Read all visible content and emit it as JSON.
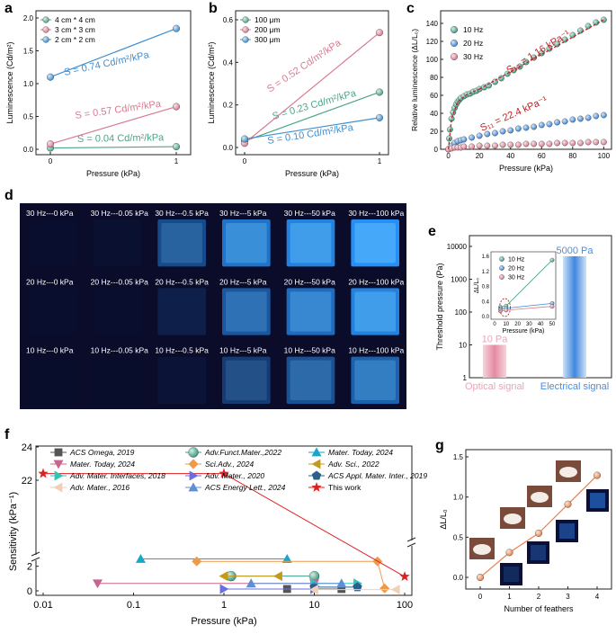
{
  "panels": {
    "a": "a",
    "b": "b",
    "c": "c",
    "d": "d",
    "e": "e",
    "f": "f",
    "g": "g"
  },
  "chart_data": [
    {
      "id": "a",
      "type": "line",
      "xlabel": "Pressure (kPa)",
      "ylabel": "Luminescence (Cd/m²)",
      "x": [
        0,
        1
      ],
      "ylim": [
        0,
        2.0
      ],
      "yticks": [
        "0.0",
        "0.5",
        "1.0",
        "1.5",
        "2.0"
      ],
      "xticks": [
        "0",
        "1"
      ],
      "series": [
        {
          "name": "4 cm * 4 cm",
          "color": "#4aa58a",
          "values": [
            0.02,
            0.04
          ],
          "annotation": "S = 0.04 Cd/m²/kPa"
        },
        {
          "name": "3 cm * 3 cm",
          "color": "#d97a8f",
          "values": [
            0.08,
            0.65
          ],
          "annotation": "S = 0.57 Cd/m²/kPa"
        },
        {
          "name": "2 cm * 2 cm",
          "color": "#3f8fd1",
          "values": [
            1.1,
            1.84
          ],
          "annotation": "S = 0.74 Cd/m²/kPa"
        }
      ]
    },
    {
      "id": "b",
      "type": "line",
      "xlabel": "Pressure (kPa)",
      "ylabel": "Luminescence (Cd/m²)",
      "x": [
        0,
        1
      ],
      "ylim": [
        0,
        0.6
      ],
      "yticks": [
        "0.0",
        "0.2",
        "0.4",
        "0.6"
      ],
      "xticks": [
        "0",
        "1"
      ],
      "series": [
        {
          "name": "100 μm",
          "color": "#4aa58a",
          "values": [
            0.03,
            0.26
          ],
          "annotation": "S = 0.23 Cd/m²/kPa"
        },
        {
          "name": "200 μm",
          "color": "#d97a8f",
          "values": [
            0.02,
            0.54
          ],
          "annotation": "S = 0.52 Cd/m²/kPa"
        },
        {
          "name": "300 μm",
          "color": "#3f8fd1",
          "values": [
            0.04,
            0.14
          ],
          "annotation": "S = 0.10 Cd/m²/kPa"
        }
      ]
    },
    {
      "id": "c",
      "type": "scatter",
      "xlabel": "Pressure (kPa)",
      "ylabel": "Relative luminescence (ΔL/L₀)",
      "xlim": [
        -5,
        105
      ],
      "ylim": [
        0,
        150
      ],
      "xticks": [
        "0",
        "20",
        "40",
        "60",
        "80",
        "100"
      ],
      "yticks": [
        "0",
        "20",
        "40",
        "60",
        "80",
        "100",
        "120",
        "140"
      ],
      "annotations": [
        "S₁₂ = 1.16 kPa⁻¹",
        "S₁₁ = 22.4 kPa⁻¹"
      ],
      "series": [
        {
          "name": "10 Hz",
          "color": "#3a9e82",
          "x": [
            0,
            0.5,
            1,
            2,
            3,
            4,
            5,
            6,
            7,
            8,
            10,
            12,
            14,
            16,
            18,
            20,
            23,
            26,
            30,
            34,
            38,
            42,
            46,
            50,
            55,
            60,
            65,
            70,
            75,
            80,
            85,
            90,
            95,
            100
          ],
          "values": [
            0,
            12,
            22,
            34,
            41,
            46,
            50,
            53,
            55,
            57,
            59,
            61,
            62,
            64,
            65,
            67,
            69,
            71,
            75,
            79,
            84,
            88,
            92,
            97,
            102,
            107,
            112,
            117,
            122,
            127,
            132,
            137,
            141,
            144
          ]
        },
        {
          "name": "20 Hz",
          "color": "#3d86d6",
          "x": [
            0,
            2,
            4,
            6,
            8,
            10,
            15,
            20,
            25,
            30,
            35,
            40,
            45,
            50,
            55,
            60,
            65,
            70,
            75,
            80,
            85,
            90,
            95,
            100
          ],
          "values": [
            0,
            4,
            7,
            9,
            10,
            11,
            13,
            15,
            17,
            18,
            20,
            21,
            23,
            24,
            25,
            27,
            28,
            30,
            31,
            33,
            34,
            35,
            37,
            38
          ]
        },
        {
          "name": "30 Hz",
          "color": "#d97a8f",
          "x": [
            0,
            2,
            4,
            6,
            8,
            10,
            15,
            20,
            25,
            30,
            35,
            40,
            45,
            50,
            55,
            60,
            65,
            70,
            75,
            80,
            85,
            90,
            95,
            100
          ],
          "values": [
            0,
            1,
            2,
            2,
            2,
            3,
            3,
            4,
            4,
            4,
            5,
            5,
            5,
            6,
            6,
            6,
            6,
            7,
            7,
            7,
            7,
            8,
            8,
            8
          ]
        }
      ]
    },
    {
      "id": "e",
      "type": "bar",
      "ylabel": "Threshold pressure (Pa)",
      "yscale": "log",
      "ylim": [
        1,
        10000
      ],
      "yticks": [
        "1",
        "10",
        "100",
        "1000",
        "10000"
      ],
      "categories": [
        "Optical signal",
        "Electrical signal"
      ],
      "values": [
        10,
        5000
      ],
      "value_labels": [
        "10 Pa",
        "5000 Pa"
      ],
      "colors": [
        "#e8a6b5",
        "#4a8ee0"
      ],
      "inset": {
        "type": "line",
        "xlabel": "Pressure (kPa)",
        "ylabel": "ΔL/L₀",
        "xticks": [
          "0",
          "10",
          "20",
          "30",
          "40",
          "50"
        ],
        "yticks": [
          "0.0",
          "0.4",
          "0.8",
          "1.2",
          "1.6"
        ],
        "series": [
          {
            "name": "10 Hz",
            "color": "#3a9e82",
            "x": [
              5,
              10,
              50
            ],
            "values": [
              0.25,
              0.28,
              1.5
            ]
          },
          {
            "name": "20 Hz",
            "color": "#3d86d6",
            "x": [
              5,
              10,
              50
            ],
            "values": [
              0.2,
              0.22,
              0.35
            ]
          },
          {
            "name": "30 Hz",
            "color": "#d97a8f",
            "x": [
              5,
              10,
              50
            ],
            "values": [
              0.15,
              0.17,
              0.27
            ]
          }
        ]
      }
    },
    {
      "id": "f",
      "type": "scatter",
      "xlabel": "Pressure (kPa)",
      "ylabel": "Sensitivity (kPa⁻¹)",
      "xscale": "log",
      "xticks": [
        "0.01",
        "0.1",
        "1",
        "10",
        "100"
      ],
      "yticks": [
        "0",
        "2",
        "22",
        "24"
      ],
      "series": [
        {
          "name": "ACS Omega, 2019",
          "color": "#555555",
          "marker": "square",
          "x": [
            5,
            20
          ],
          "values": [
            0.15,
            0.15
          ]
        },
        {
          "name": "Adv.Funct.Mater.,2022",
          "color": "#3a9e82",
          "marker": "circle",
          "x": [
            1.2,
            10
          ],
          "values": [
            1.2,
            1.2
          ]
        },
        {
          "name": "Mater. Today, 2024",
          "color": "#1ba6c9",
          "marker": "triangle-up",
          "x": [
            0.12,
            5
          ],
          "values": [
            2.6,
            2.6
          ]
        },
        {
          "name": "Mater. Today, 2024",
          "color": "#c8658f",
          "marker": "triangle-down",
          "x": [
            0.04,
            10
          ],
          "values": [
            0.6,
            0.6
          ]
        },
        {
          "name": "Sci.Adv., 2024",
          "color": "#ee9a4a",
          "marker": "diamond",
          "x": [
            0.5,
            50,
            60
          ],
          "values": [
            2.4,
            2.4,
            0.2
          ]
        },
        {
          "name": "Adv. Sci., 2022",
          "color": "#c49a1d",
          "marker": "triangle-left",
          "x": [
            1,
            4
          ],
          "values": [
            1.2,
            1.2
          ]
        },
        {
          "name": "Adv. Mater. Interfaces, 2018",
          "color": "#2cc7b8",
          "marker": "triangle-right",
          "x": [
            10,
            30
          ],
          "values": [
            0.6,
            0.6
          ]
        },
        {
          "name": "Adv. Mater., 2020",
          "color": "#6a6ee0",
          "marker": "triangle-right",
          "x": [
            1,
            10
          ],
          "values": [
            0.15,
            0.15
          ]
        },
        {
          "name": "ACS Appl. Mater. Inter., 2019",
          "color": "#2c5f8a",
          "marker": "pentagon",
          "x": [
            10,
            30
          ],
          "values": [
            0.3,
            0.3
          ]
        },
        {
          "name": "Adv. Mater., 2016",
          "color": "#f2d0b8",
          "marker": "triangle-left",
          "x": [
            10,
            80
          ],
          "values": [
            0.1,
            0.1
          ]
        },
        {
          "name": "ACS Energy Lett., 2024",
          "color": "#5e8fd6",
          "marker": "triangle-up",
          "x": [
            2,
            20
          ],
          "values": [
            0.6,
            0.6
          ]
        },
        {
          "name": "This work",
          "color": "#e02020",
          "marker": "star",
          "x": [
            0.01,
            1,
            100
          ],
          "values": [
            22.4,
            22.4,
            1.16
          ]
        }
      ]
    },
    {
      "id": "g",
      "type": "line",
      "xlabel": "Number of feathers",
      "ylabel": "ΔL/L₀",
      "x": [
        0,
        1,
        2,
        3,
        4
      ],
      "values": [
        0.0,
        0.31,
        0.55,
        0.91,
        1.27
      ],
      "xticks": [
        "0",
        "1",
        "2",
        "3",
        "4"
      ],
      "yticks": [
        "0.0",
        "0.5",
        "1.0",
        "1.5"
      ],
      "ylim": [
        -0.1,
        1.5
      ],
      "color": "#e8824d"
    }
  ],
  "panel_d": {
    "rows": [
      {
        "freq": "30 Hz",
        "labels": [
          "30 Hz---0 kPa",
          "30 Hz---0.05 kPa",
          "30 Hz---0.5 kPa",
          "30 Hz---5 kPa",
          "30 Hz---50 kPa",
          "30 Hz---100 kPa"
        ],
        "brightness": [
          0.02,
          0.03,
          0.45,
          0.75,
          0.85,
          0.95
        ]
      },
      {
        "freq": "20 Hz",
        "labels": [
          "20 Hz---0 kPa",
          "20 Hz---0.05 kPa",
          "20 Hz---0.5 kPa",
          "20 Hz---5 kPa",
          "20 Hz---50 kPa",
          "20 Hz---100 kPa"
        ],
        "brightness": [
          0.02,
          0.02,
          0.15,
          0.55,
          0.7,
          0.85
        ]
      },
      {
        "freq": "10 Hz",
        "labels": [
          "10 Hz---0 kPa",
          "10 Hz---0.05 kPa",
          "10 Hz---0.5 kPa",
          "10 Hz---5 kPa",
          "10 Hz---50 kPa",
          "10 Hz---100 kPa"
        ],
        "brightness": [
          0.01,
          0.01,
          0.06,
          0.35,
          0.5,
          0.62
        ]
      }
    ]
  }
}
